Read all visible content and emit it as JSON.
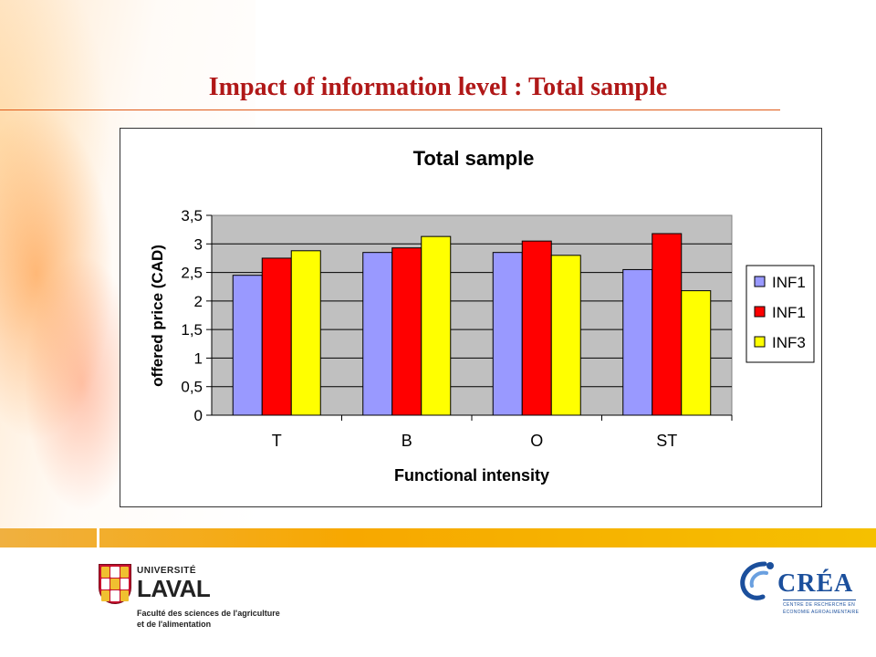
{
  "slide": {
    "title": "Impact of information level : Total sample"
  },
  "colors": {
    "title": "#b01818",
    "accent_rule": "#e05a18",
    "plot_area": "#c0c0c0",
    "band": "#f7a800"
  },
  "chart_data": {
    "type": "bar",
    "title": "Total sample",
    "xlabel": "Functional intensity",
    "ylabel": "offered price (CAD)",
    "categories": [
      "T",
      "B",
      "O",
      "ST"
    ],
    "series": [
      {
        "name": "INF1",
        "color": "#9999ff",
        "values": [
          2.45,
          2.85,
          2.85,
          2.55
        ]
      },
      {
        "name": "INF1",
        "color": "#ff0000",
        "values": [
          2.75,
          2.93,
          3.05,
          3.18
        ]
      },
      {
        "name": "INF3",
        "color": "#ffff00",
        "values": [
          2.88,
          3.13,
          2.8,
          2.18
        ]
      }
    ],
    "ylim": [
      0,
      3.5
    ],
    "yticks": [
      "0",
      "0,5",
      "1",
      "1,5",
      "2",
      "2,5",
      "3",
      "3,5"
    ],
    "grid": true,
    "legend": "right"
  },
  "logos": {
    "laval": {
      "universite": "UNIVERSITÉ",
      "name": "LAVAL",
      "faculty_line1": "Faculté des sciences de l'agriculture",
      "faculty_line2": "et de l'alimentation"
    },
    "crea": {
      "name": "CRÉA",
      "sub_line1": "CENTRE DE RECHERCHE EN",
      "sub_line2": "ÉCONOMIE AGROALIMENTAIRE"
    }
  }
}
